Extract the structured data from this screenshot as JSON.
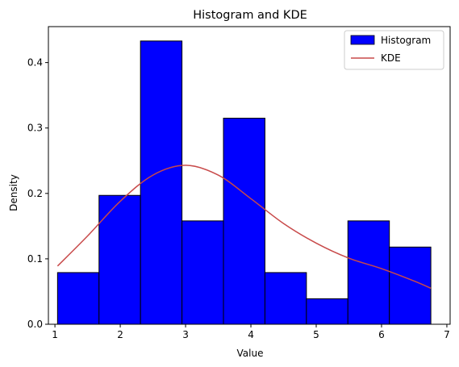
{
  "chart_data": {
    "type": "bar",
    "title": "Histogram and KDE",
    "xlabel": "Value",
    "ylabel": "Density",
    "xlim": [
      0.9,
      7.05
    ],
    "ylim": [
      0,
      0.455
    ],
    "xticks": [
      1,
      2,
      3,
      4,
      5,
      6,
      7
    ],
    "yticks": [
      0.0,
      0.1,
      0.2,
      0.3,
      0.4
    ],
    "ytick_labels": [
      "0.0",
      "0.1",
      "0.2",
      "0.3",
      "0.4"
    ],
    "legend_position": "top-right",
    "series": [
      {
        "name": "Histogram",
        "kind": "histogram",
        "color": "#0000ff",
        "edge_color": "#000000",
        "bins": [
          {
            "x0": 1.04,
            "x1": 1.675,
            "density": 0.079
          },
          {
            "x0": 1.675,
            "x1": 2.31,
            "density": 0.197
          },
          {
            "x0": 2.31,
            "x1": 2.945,
            "density": 0.433
          },
          {
            "x0": 2.945,
            "x1": 3.58,
            "density": 0.158
          },
          {
            "x0": 3.58,
            "x1": 4.215,
            "density": 0.315
          },
          {
            "x0": 4.215,
            "x1": 4.85,
            "density": 0.079
          },
          {
            "x0": 4.85,
            "x1": 5.485,
            "density": 0.039
          },
          {
            "x0": 5.485,
            "x1": 6.12,
            "density": 0.158
          },
          {
            "x0": 6.12,
            "x1": 6.755,
            "density": 0.118
          }
        ]
      },
      {
        "name": "KDE",
        "kind": "line",
        "color": "#c84a4a",
        "x": [
          1.04,
          1.5,
          2.0,
          2.5,
          3.0,
          3.5,
          4.0,
          4.5,
          5.0,
          5.5,
          6.0,
          6.5,
          6.755
        ],
        "y": [
          0.089,
          0.135,
          0.188,
          0.228,
          0.243,
          0.228,
          0.192,
          0.154,
          0.124,
          0.101,
          0.085,
          0.066,
          0.055
        ]
      }
    ]
  }
}
